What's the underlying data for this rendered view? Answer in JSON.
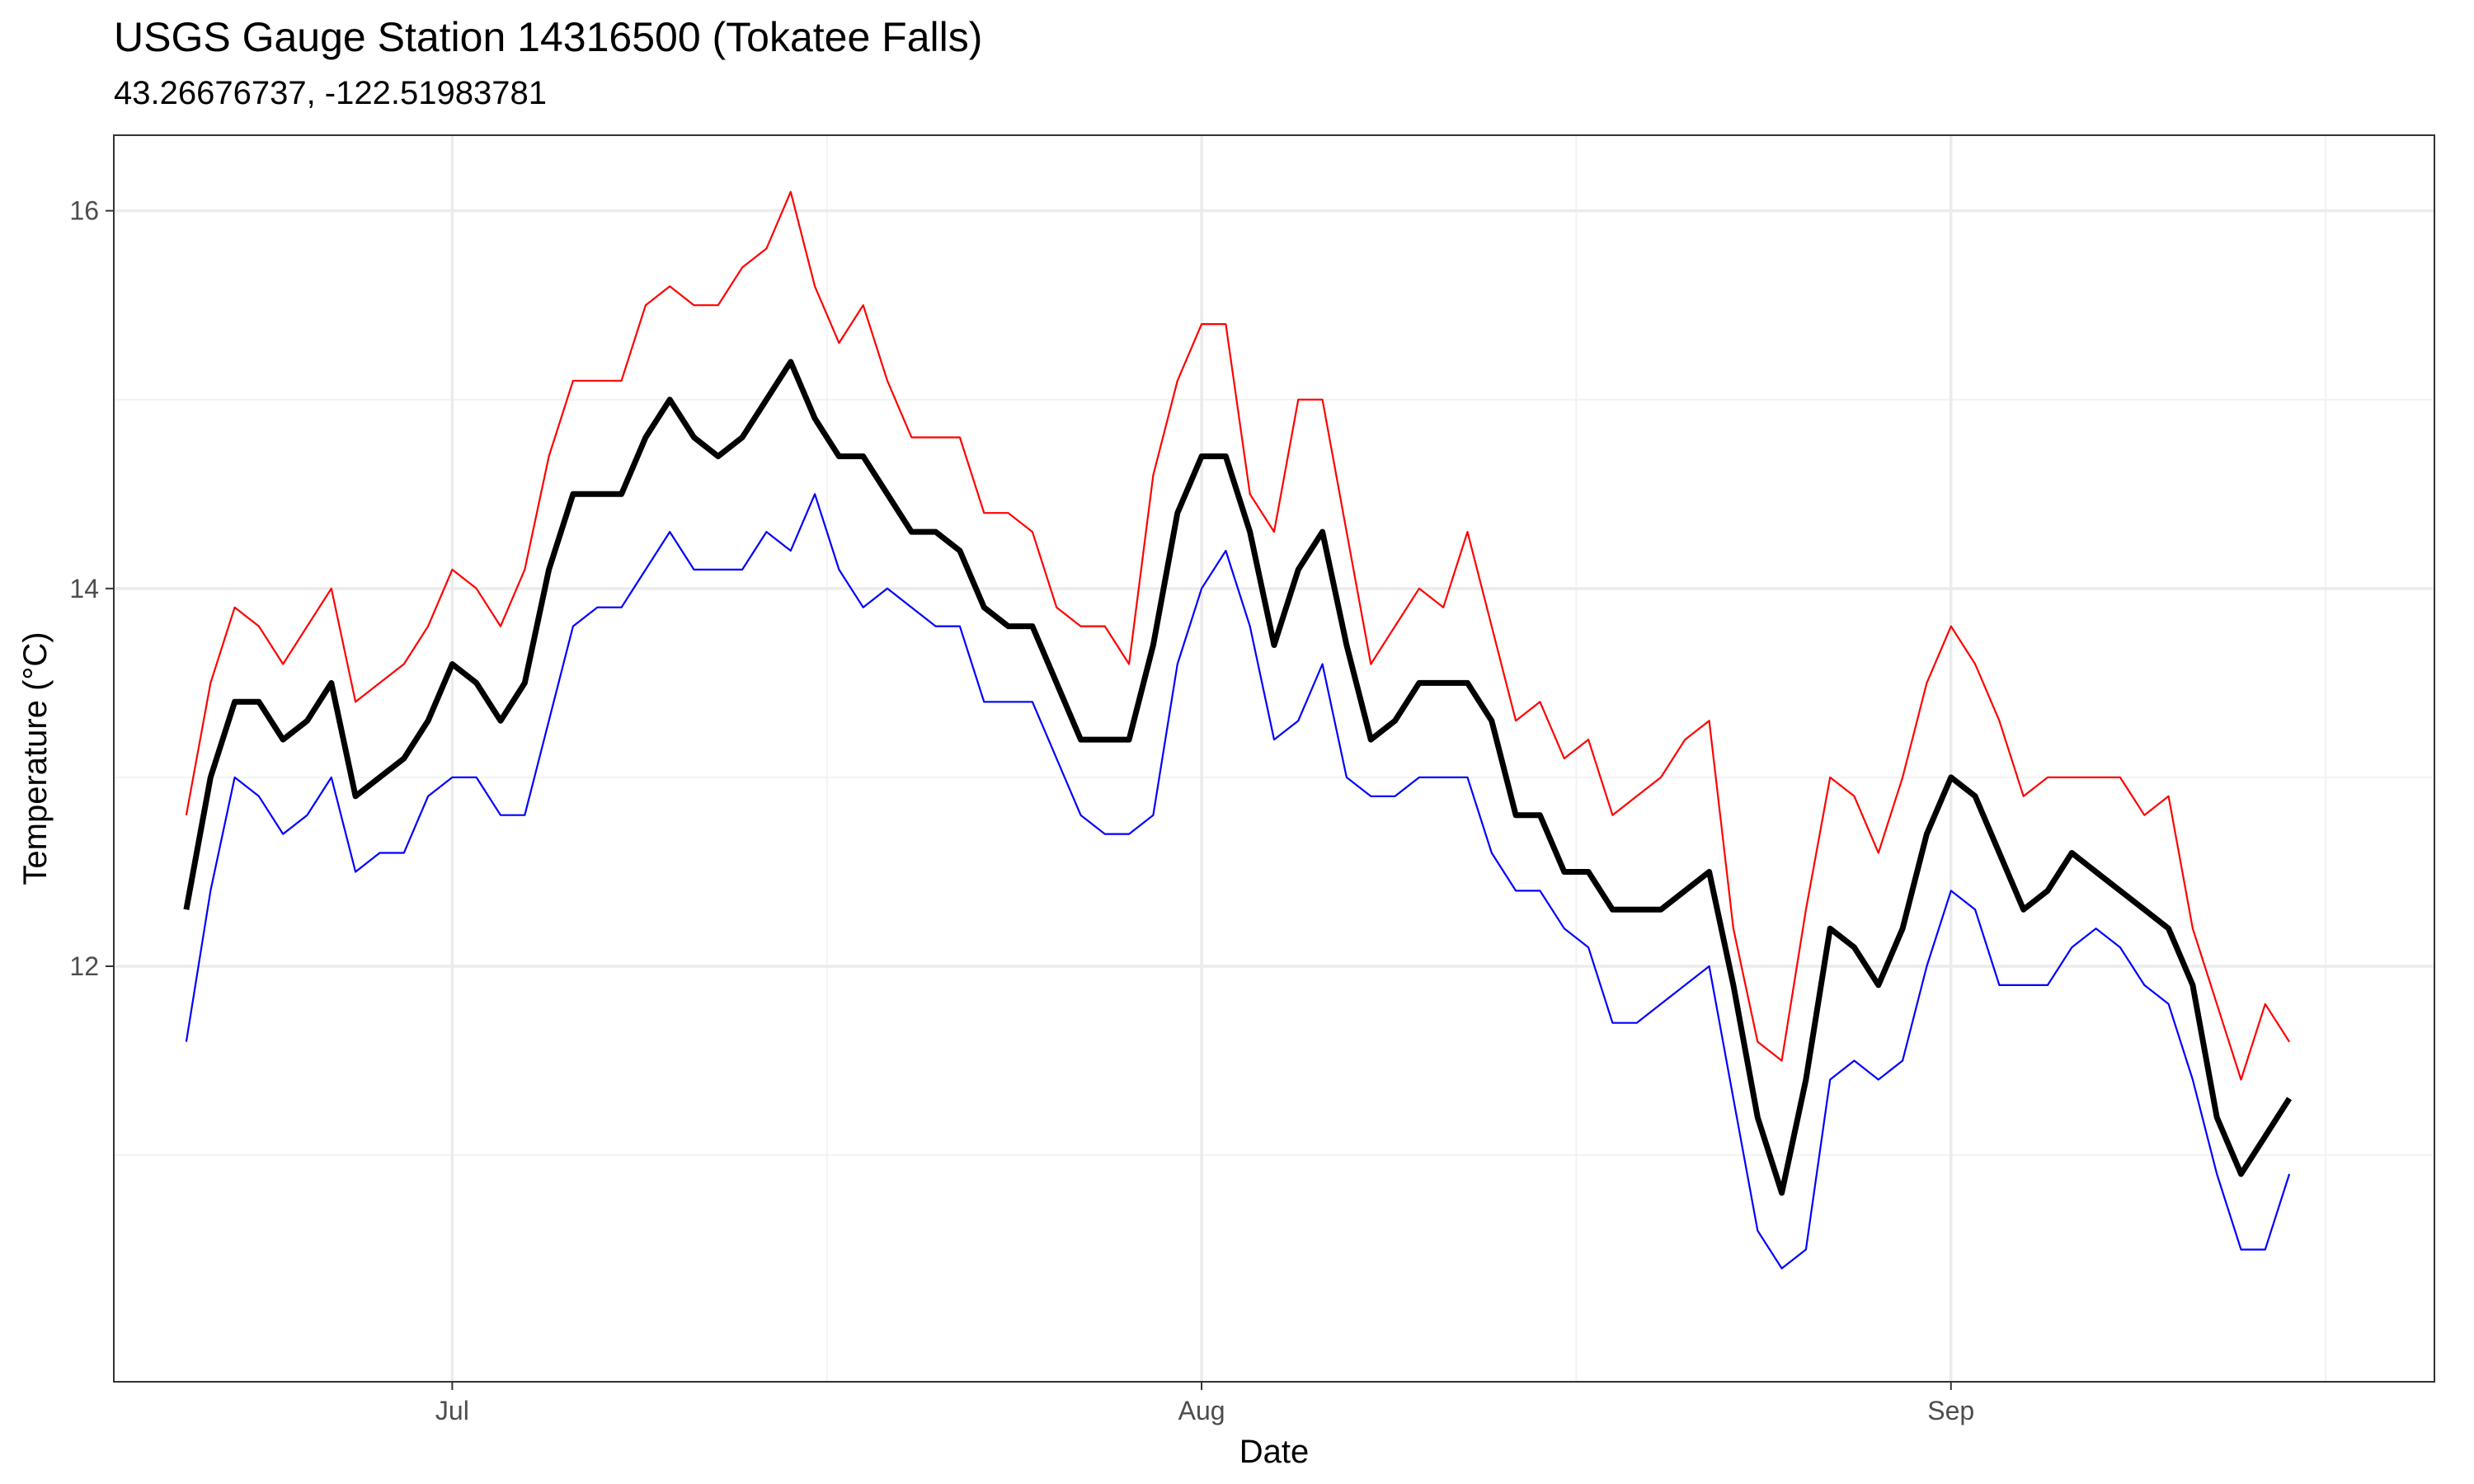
{
  "chart_data": {
    "type": "line",
    "title": "USGS Gauge Station 14316500 (Tokatee Falls)",
    "subtitle": "43.26676737, -122.51983781",
    "xlabel": "Date",
    "ylabel": "Temperature (°C)",
    "x_ticks": [
      {
        "label": "Jul",
        "date": "2024-07-01"
      },
      {
        "label": "Aug",
        "date": "2024-08-01"
      },
      {
        "label": "Sep",
        "date": "2024-09-01"
      }
    ],
    "y_ticks": [
      12,
      14,
      16
    ],
    "xlim": [
      "2024-06-17",
      "2024-09-21"
    ],
    "ylim": [
      9.8,
      16.4
    ],
    "grid": true,
    "x_start": "2024-06-20",
    "series": [
      {
        "color": "#ff0000",
        "stroke_width": 2.2,
        "values": [
          12.8,
          13.5,
          13.9,
          13.8,
          13.6,
          13.8,
          14.0,
          13.4,
          13.5,
          13.6,
          13.8,
          14.1,
          14.0,
          13.8,
          14.1,
          14.7,
          15.1,
          15.1,
          15.1,
          15.5,
          15.6,
          15.5,
          15.5,
          15.7,
          15.8,
          16.1,
          15.6,
          15.3,
          15.5,
          15.1,
          14.8,
          14.8,
          14.8,
          14.4,
          14.4,
          14.3,
          13.9,
          13.8,
          13.8,
          13.6,
          14.6,
          15.1,
          15.4,
          15.4,
          14.5,
          14.3,
          15.0,
          15.0,
          14.3,
          13.6,
          13.8,
          14.0,
          13.9,
          14.3,
          13.8,
          13.3,
          13.4,
          13.1,
          13.2,
          12.8,
          12.9,
          13.0,
          13.2,
          13.3,
          12.2,
          11.6,
          11.5,
          12.3,
          13.0,
          12.9,
          12.6,
          13.0,
          13.5,
          13.8,
          13.6,
          13.3,
          12.9,
          13.0,
          13.0,
          13.0,
          13.0,
          12.8,
          12.9,
          12.2,
          11.8,
          11.4,
          11.8,
          11.6
        ]
      },
      {
        "color": "#000000",
        "stroke_width": 7,
        "values": [
          12.3,
          13.0,
          13.4,
          13.4,
          13.2,
          13.3,
          13.5,
          12.9,
          13.0,
          13.1,
          13.3,
          13.6,
          13.5,
          13.3,
          13.5,
          14.1,
          14.5,
          14.5,
          14.5,
          14.8,
          15.0,
          14.8,
          14.7,
          14.8,
          15.0,
          15.2,
          14.9,
          14.7,
          14.7,
          14.5,
          14.3,
          14.3,
          14.2,
          13.9,
          13.8,
          13.8,
          13.5,
          13.2,
          13.2,
          13.2,
          13.7,
          14.4,
          14.7,
          14.7,
          14.3,
          13.7,
          14.1,
          14.3,
          13.7,
          13.2,
          13.3,
          13.5,
          13.5,
          13.5,
          13.3,
          12.8,
          12.8,
          12.5,
          12.5,
          12.3,
          12.3,
          12.3,
          12.4,
          12.5,
          11.9,
          11.2,
          10.8,
          11.4,
          12.2,
          12.1,
          11.9,
          12.2,
          12.7,
          13.0,
          12.9,
          12.6,
          12.3,
          12.4,
          12.6,
          12.5,
          12.4,
          12.3,
          12.2,
          11.9,
          11.2,
          10.9,
          11.1,
          11.3
        ]
      },
      {
        "color": "#0000ff",
        "stroke_width": 2.2,
        "values": [
          11.6,
          12.4,
          13.0,
          12.9,
          12.7,
          12.8,
          13.0,
          12.5,
          12.6,
          12.6,
          12.9,
          13.0,
          13.0,
          12.8,
          12.8,
          13.3,
          13.8,
          13.9,
          13.9,
          14.1,
          14.3,
          14.1,
          14.1,
          14.1,
          14.3,
          14.2,
          14.5,
          14.1,
          13.9,
          14.0,
          13.9,
          13.8,
          13.8,
          13.4,
          13.4,
          13.4,
          13.1,
          12.8,
          12.7,
          12.7,
          12.8,
          13.6,
          14.0,
          14.2,
          13.8,
          13.2,
          13.3,
          13.6,
          13.0,
          12.9,
          12.9,
          13.0,
          13.0,
          13.0,
          12.6,
          12.4,
          12.4,
          12.2,
          12.1,
          11.7,
          11.7,
          11.8,
          11.9,
          12.0,
          11.3,
          10.6,
          10.4,
          10.5,
          11.4,
          11.5,
          11.4,
          11.5,
          12.0,
          12.4,
          12.3,
          11.9,
          11.9,
          11.9,
          12.1,
          12.2,
          12.1,
          11.9,
          11.8,
          11.4,
          10.9,
          10.5,
          10.5,
          10.9
        ]
      }
    ]
  }
}
